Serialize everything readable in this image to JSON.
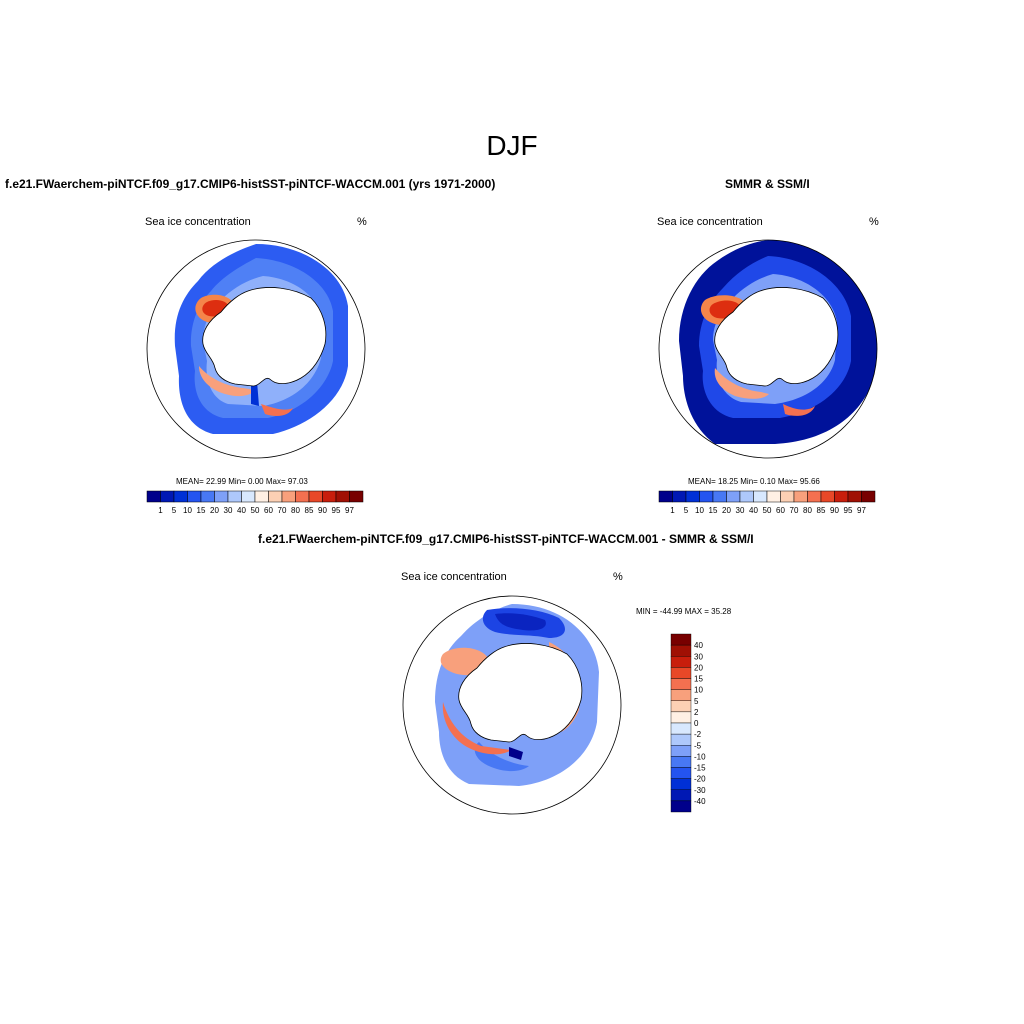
{
  "main_title": "DJF",
  "panels": [
    {
      "title": "f.e21.FWaerchem-piNTCF.f09_g17.CMIP6-histSST-piNTCF-WACCM.001 (yrs 1971-2000)",
      "field_label": "Sea ice concentration",
      "units": "%",
      "stats": "MEAN=  22.99  Min=   0.00  Max=  97.03"
    },
    {
      "title": "SMMR & SSM/I",
      "field_label": "Sea ice concentration",
      "units": "%",
      "stats": "MEAN=  18.25  Min=   0.10  Max=  95.66"
    },
    {
      "title": "f.e21.FWaerchem-piNTCF.f09_g17.CMIP6-histSST-piNTCF-WACCM.001 - SMMR & SSM/I",
      "field_label": "Sea ice concentration",
      "units": "%",
      "stats": "MIN = -44.99 MAX =  35.28"
    }
  ],
  "chart_data": {
    "type": "heatmap",
    "projection": "south polar stereographic",
    "abs_colorbar": {
      "levels": [
        "1",
        "5",
        "10",
        "15",
        "20",
        "30",
        "40",
        "50",
        "60",
        "70",
        "80",
        "85",
        "90",
        "95",
        "97"
      ],
      "colors": [
        "#00008b",
        "#0018b4",
        "#0030d6",
        "#2454f0",
        "#4878f4",
        "#7ea0f8",
        "#aec8fb",
        "#d8e8fe",
        "#fff0e4",
        "#fcd0b4",
        "#f8a07c",
        "#f47050",
        "#e84828",
        "#c81e0c",
        "#a01004",
        "#780000"
      ]
    },
    "diff_colorbar": {
      "levels": [
        "40",
        "30",
        "20",
        "15",
        "10",
        "5",
        "2",
        "0",
        "-2",
        "-5",
        "-10",
        "-15",
        "-20",
        "-30",
        "-40"
      ],
      "colors": [
        "#780000",
        "#a01004",
        "#c81e0c",
        "#e84828",
        "#f47050",
        "#f8a07c",
        "#fcd0b4",
        "#fff0e4",
        "#d8e8fe",
        "#aec8fb",
        "#7ea0f8",
        "#4878f4",
        "#2454f0",
        "#0030d6",
        "#0018b4",
        "#00008b"
      ]
    }
  }
}
